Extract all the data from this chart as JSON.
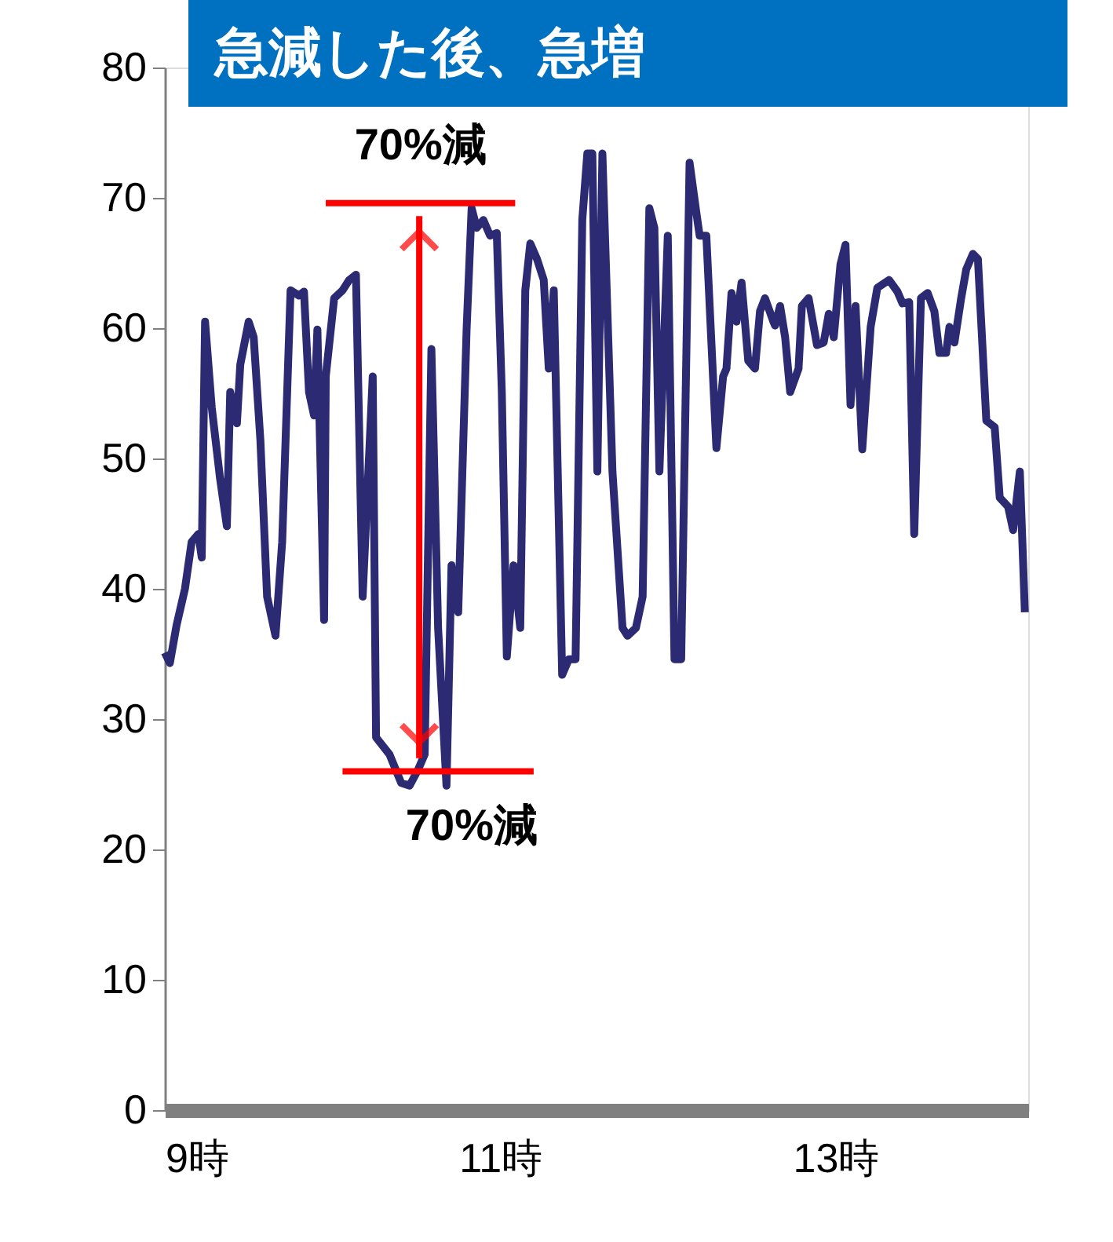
{
  "chart_data": {
    "type": "line",
    "title": "急減した後、急増",
    "xlim": [
      9,
      14.15
    ],
    "xticks": [
      {
        "value": 9,
        "label": "9時"
      },
      {
        "value": 11,
        "label": "11時"
      },
      {
        "value": 13,
        "label": "13時"
      }
    ],
    "ylim": [
      0,
      80
    ],
    "yticks": [
      0,
      10,
      20,
      30,
      40,
      50,
      60,
      70,
      80
    ],
    "grid": false,
    "marker": "none",
    "line_style": "solid",
    "series": [
      {
        "color": "#2b2a72",
        "x": [
          9.0,
          9.03,
          9.07,
          9.12,
          9.16,
          9.2,
          9.22,
          9.24,
          9.28,
          9.33,
          9.37,
          9.39,
          9.43,
          9.45,
          9.5,
          9.53,
          9.57,
          9.61,
          9.66,
          9.7,
          9.75,
          9.8,
          9.83,
          9.86,
          9.89,
          9.91,
          9.95,
          9.96,
          10.01,
          10.06,
          10.1,
          10.14,
          10.18,
          10.24,
          10.26,
          10.34,
          10.41,
          10.46,
          10.51,
          10.55,
          10.59,
          10.63,
          10.68,
          10.71,
          10.75,
          10.8,
          10.83,
          10.86,
          10.9,
          10.94,
          10.98,
          11.01,
          11.04,
          11.08,
          11.12,
          11.15,
          11.18,
          11.22,
          11.26,
          11.29,
          11.32,
          11.37,
          11.41,
          11.45,
          11.49,
          11.52,
          11.55,
          11.58,
          11.61,
          11.67,
          11.73,
          11.76,
          11.81,
          11.85,
          11.89,
          11.92,
          11.95,
          12.0,
          12.04,
          12.08,
          12.13,
          12.17,
          12.19,
          12.23,
          12.29,
          12.33,
          12.35,
          12.38,
          12.41,
          12.44,
          12.48,
          12.52,
          12.55,
          12.58,
          12.63,
          12.64,
          12.67,
          12.7,
          12.73,
          12.78,
          12.8,
          12.84,
          12.89,
          12.93,
          12.96,
          12.99,
          13.03,
          13.06,
          13.09,
          13.12,
          13.16,
          13.21,
          13.25,
          13.32,
          13.37,
          13.4,
          13.44,
          13.47,
          13.51,
          13.55,
          13.59,
          13.62,
          13.66,
          13.68,
          13.71,
          13.75,
          13.78,
          13.82,
          13.85,
          13.9,
          13.95,
          13.98,
          14.03,
          14.06,
          14.1,
          14.13
        ],
        "values": [
          35.1,
          34.3,
          37.2,
          40.0,
          43.6,
          44.2,
          42.4,
          60.5,
          53.9,
          48.4,
          44.8,
          55.1,
          52.7,
          57.2,
          60.5,
          59.3,
          51.4,
          39.4,
          36.4,
          43.6,
          62.9,
          62.5,
          62.8,
          55.1,
          53.3,
          59.9,
          37.6,
          56.3,
          62.3,
          62.9,
          63.7,
          64.1,
          39.4,
          56.3,
          28.6,
          27.3,
          25.1,
          24.9,
          26.1,
          27.3,
          58.4,
          37.0,
          24.9,
          41.8,
          38.2,
          59.9,
          69.2,
          67.7,
          68.3,
          67.1,
          67.3,
          55.1,
          34.8,
          41.8,
          37.0,
          62.9,
          66.5,
          65.3,
          63.7,
          56.9,
          62.9,
          33.4,
          34.6,
          34.6,
          68.3,
          73.4,
          73.4,
          49.0,
          73.4,
          49.0,
          37.0,
          36.4,
          37.0,
          39.4,
          69.2,
          67.7,
          49.0,
          67.1,
          34.6,
          34.6,
          72.7,
          68.9,
          67.1,
          67.1,
          50.8,
          56.3,
          56.9,
          62.7,
          60.5,
          63.5,
          57.5,
          56.9,
          61.3,
          62.3,
          60.5,
          60.2,
          61.7,
          59.3,
          55.1,
          56.9,
          61.7,
          62.3,
          58.7,
          58.9,
          61.1,
          59.3,
          64.9,
          66.4,
          54.1,
          61.7,
          50.7,
          60.1,
          63.1,
          63.7,
          62.8,
          61.9,
          62.0,
          44.2,
          62.3,
          62.7,
          61.3,
          58.1,
          58.1,
          60.1,
          58.9,
          62.3,
          64.5,
          65.7,
          65.3,
          52.9,
          52.4,
          47.0,
          46.3,
          44.5,
          49.0,
          38.2
        ]
      },
      {
        "color": "#ff0000",
        "x": [
          9.96,
          11.09
        ],
        "values": [
          69.6,
          69.6
        ]
      },
      {
        "color": "#ff0000",
        "x": [
          10.06,
          11.2
        ],
        "values": [
          26.0,
          26.0
        ]
      }
    ],
    "annotations": [
      "70%減",
      "70%減"
    ]
  }
}
